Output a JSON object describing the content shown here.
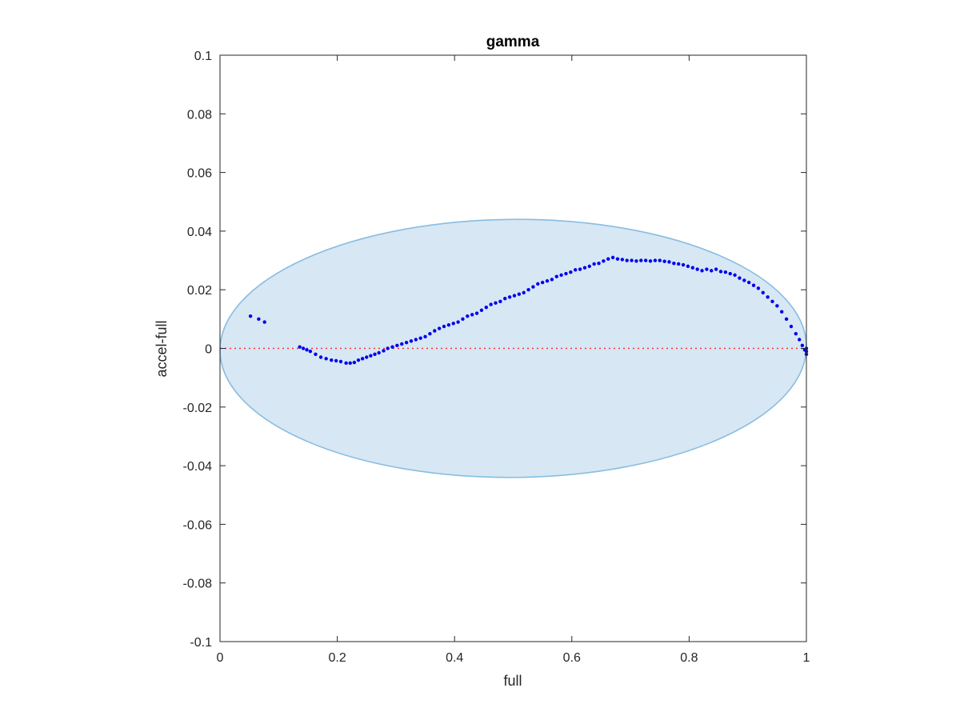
{
  "chart_data": {
    "type": "scatter",
    "title": "gamma",
    "xlabel": "full",
    "ylabel": "accel-full",
    "xlim": [
      0,
      1
    ],
    "ylim": [
      -0.1,
      0.1
    ],
    "x_ticks": [
      0,
      0.2,
      0.4,
      0.6,
      0.8,
      1
    ],
    "x_tick_labels": [
      "0",
      "0.2",
      "0.4",
      "0.6",
      "0.8",
      "1"
    ],
    "y_ticks": [
      -0.1,
      -0.08,
      -0.06,
      -0.04,
      -0.02,
      0,
      0.02,
      0.04,
      0.06,
      0.08,
      0.1
    ],
    "y_tick_labels": [
      "-0.1",
      "-0.08",
      "-0.06",
      "-0.04",
      "-0.02",
      "0",
      "0.02",
      "0.04",
      "0.06",
      "0.08",
      "0.1"
    ],
    "grid": false,
    "reference_line": {
      "y": 0,
      "style": "dotted",
      "color": "#ff3333"
    },
    "ellipse": {
      "cx": 0.5,
      "cy": 0.0,
      "rx": 0.5,
      "ry": 0.044,
      "angle_deg": -0.42,
      "fill": "#d7e7f4",
      "stroke": "#88bde0"
    },
    "series": [
      {
        "color": "#0000ee",
        "x": [
          0.052,
          0.066,
          0.076,
          0.136,
          0.142,
          0.148,
          0.154,
          0.163,
          0.172,
          0.181,
          0.19,
          0.198,
          0.206,
          0.215,
          0.222,
          0.229,
          0.236,
          0.243,
          0.25,
          0.257,
          0.264,
          0.271,
          0.279,
          0.286,
          0.294,
          0.302,
          0.31,
          0.318,
          0.326,
          0.334,
          0.342,
          0.35,
          0.358,
          0.366,
          0.374,
          0.382,
          0.39,
          0.398,
          0.406,
          0.414,
          0.422,
          0.43,
          0.438,
          0.446,
          0.454,
          0.462,
          0.47,
          0.478,
          0.486,
          0.494,
          0.502,
          0.51,
          0.518,
          0.526,
          0.534,
          0.542,
          0.55,
          0.558,
          0.566,
          0.574,
          0.582,
          0.59,
          0.598,
          0.606,
          0.614,
          0.622,
          0.63,
          0.638,
          0.646,
          0.654,
          0.662,
          0.67,
          0.678,
          0.686,
          0.694,
          0.702,
          0.71,
          0.718,
          0.726,
          0.734,
          0.742,
          0.75,
          0.758,
          0.766,
          0.774,
          0.782,
          0.79,
          0.798,
          0.806,
          0.814,
          0.822,
          0.83,
          0.838,
          0.846,
          0.854,
          0.862,
          0.87,
          0.878,
          0.886,
          0.894,
          0.902,
          0.91,
          0.918,
          0.926,
          0.934,
          0.942,
          0.95,
          0.958,
          0.966,
          0.974,
          0.982,
          0.988,
          0.993,
          0.997,
          1.0,
          1.0,
          1.0
        ],
        "y": [
          0.011,
          0.01,
          0.009,
          0.0005,
          0.0,
          -0.0005,
          -0.001,
          -0.002,
          -0.003,
          -0.0035,
          -0.004,
          -0.0042,
          -0.0045,
          -0.005,
          -0.005,
          -0.0048,
          -0.004,
          -0.0035,
          -0.003,
          -0.0025,
          -0.002,
          -0.0015,
          -0.0008,
          0.0,
          0.0005,
          0.001,
          0.0015,
          0.002,
          0.0025,
          0.003,
          0.0035,
          0.004,
          0.005,
          0.006,
          0.0068,
          0.0075,
          0.008,
          0.0085,
          0.009,
          0.01,
          0.011,
          0.0115,
          0.012,
          0.013,
          0.014,
          0.015,
          0.0155,
          0.016,
          0.017,
          0.0175,
          0.018,
          0.0185,
          0.019,
          0.02,
          0.021,
          0.022,
          0.0225,
          0.023,
          0.0235,
          0.0245,
          0.025,
          0.0255,
          0.026,
          0.0268,
          0.027,
          0.0275,
          0.028,
          0.0288,
          0.029,
          0.0298,
          0.0305,
          0.031,
          0.0305,
          0.0303,
          0.03,
          0.03,
          0.0298,
          0.03,
          0.03,
          0.0298,
          0.03,
          0.03,
          0.0297,
          0.0295,
          0.029,
          0.0288,
          0.0285,
          0.028,
          0.0275,
          0.027,
          0.0265,
          0.027,
          0.0265,
          0.027,
          0.0262,
          0.026,
          0.0255,
          0.025,
          0.024,
          0.0232,
          0.0225,
          0.0215,
          0.0205,
          0.019,
          0.0175,
          0.016,
          0.0145,
          0.0125,
          0.01,
          0.0075,
          0.005,
          0.003,
          0.001,
          -0.0005,
          -0.002,
          -0.001,
          0.0
        ]
      }
    ]
  }
}
